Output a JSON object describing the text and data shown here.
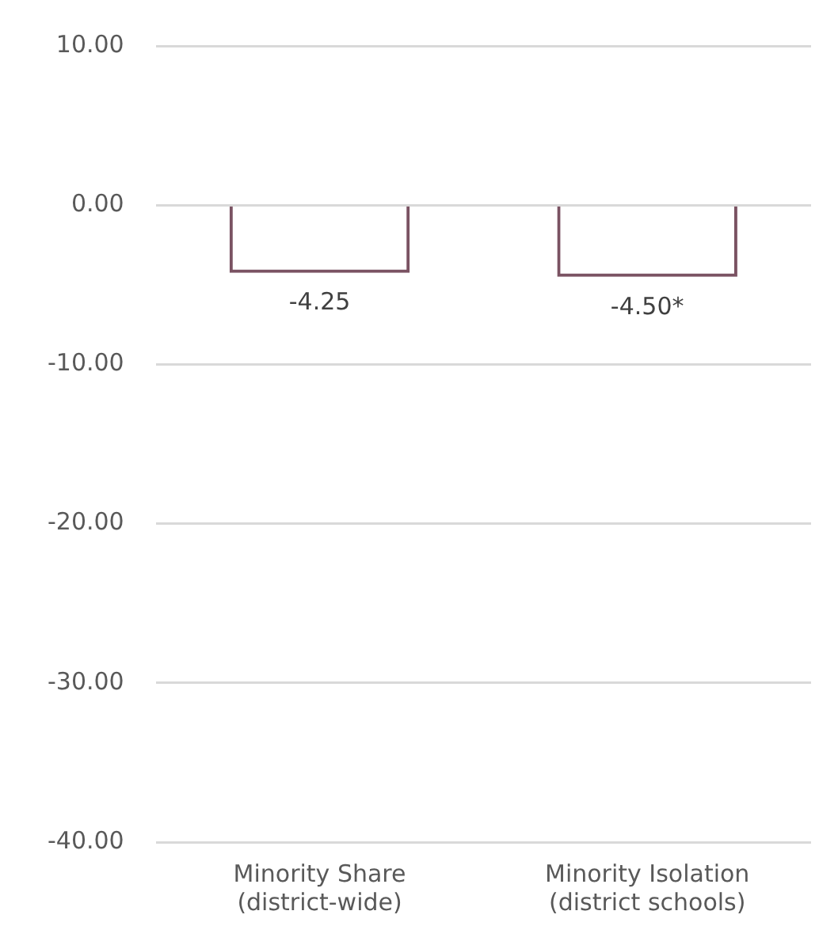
{
  "chart_data": {
    "type": "bar",
    "categories": [
      "Minority Share\n(district-wide)",
      "Minority Isolation\n(district schools)"
    ],
    "values": [
      -4.25,
      -4.5
    ],
    "value_labels": [
      "-4.25",
      "-4.50*"
    ],
    "color": "#7a5262",
    "ylim": [
      -40,
      10
    ],
    "yticks": [
      {
        "value": -40,
        "label": "-40.00"
      },
      {
        "value": -30,
        "label": "-30.00"
      },
      {
        "value": -20,
        "label": "-20.00"
      },
      {
        "value": -10,
        "label": "-10.00"
      },
      {
        "value": 0,
        "label": "0.00"
      },
      {
        "value": 10,
        "label": "10.00"
      }
    ],
    "grid": "y"
  }
}
